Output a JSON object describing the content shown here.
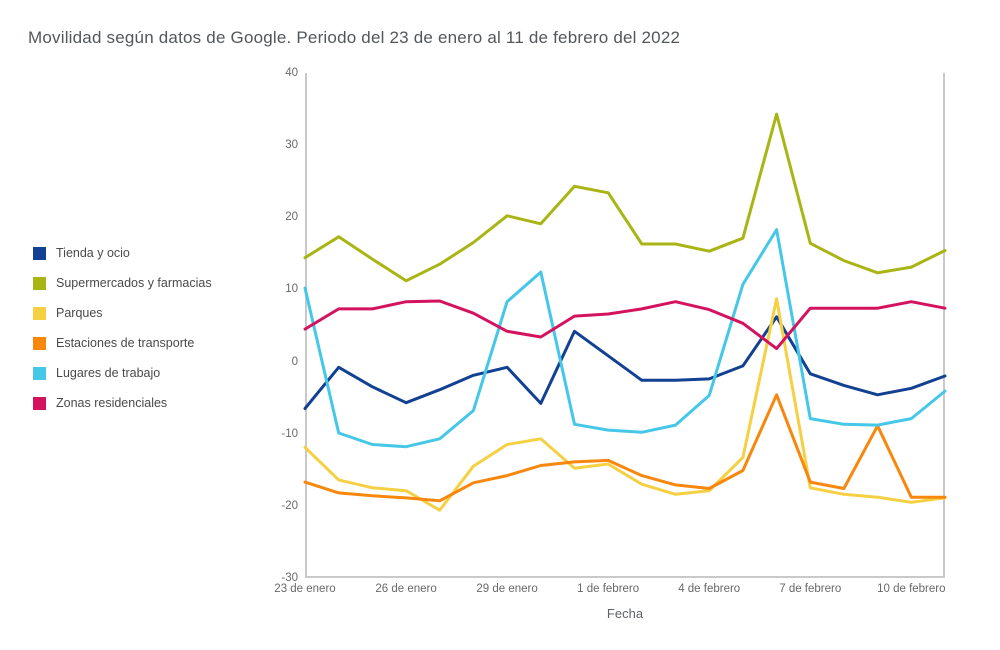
{
  "title": "Movilidad según datos de Google. Periodo del 23 de enero al 11 de febrero del 2022",
  "axes": {
    "y_ticks": [
      40,
      30,
      20,
      10,
      0,
      -10,
      -20,
      -30
    ],
    "x_tick_labels": [
      "23 de enero",
      "26 de enero",
      "29 de enero",
      "1 de febrero",
      "4 de febrero",
      "7 de febrero",
      "10 de febrero"
    ],
    "x_label": "Fecha",
    "axis_color": "#c9c9c9"
  },
  "legend": {
    "items": [
      {
        "label": "Tienda y ocio",
        "color": "#124092"
      },
      {
        "label": "Supermercados y farmacias",
        "color": "#a9b514"
      },
      {
        "label": "Parques",
        "color": "#f6d043"
      },
      {
        "label": "Estaciones de transporte",
        "color": "#f8870e"
      },
      {
        "label": "Lugares de trabajo",
        "color": "#45c7e8"
      },
      {
        "label": "Zonas residenciales",
        "color": "#d4135f"
      }
    ]
  },
  "chart_data": {
    "type": "line",
    "title": "Movilidad según datos de Google. Periodo del 23 de enero al 11 de febrero del 2022",
    "xlabel": "Fecha",
    "ylabel": "",
    "ylim": [
      -30,
      40
    ],
    "grid": false,
    "legend_position": "left",
    "x": [
      "23 de enero",
      "24 de enero",
      "25 de enero",
      "26 de enero",
      "27 de enero",
      "28 de enero",
      "29 de enero",
      "30 de enero",
      "31 de enero",
      "1 de febrero",
      "2 de febrero",
      "3 de febrero",
      "4 de febrero",
      "5 de febrero",
      "6 de febrero",
      "7 de febrero",
      "8 de febrero",
      "9 de febrero",
      "10 de febrero",
      "11 de febrero"
    ],
    "series": [
      {
        "name": "Tienda y ocio",
        "color": "#124092",
        "values": [
          -6.5,
          -0.8,
          -3.5,
          -5.7,
          -3.9,
          -1.9,
          -0.8,
          -5.8,
          4.2,
          0.8,
          -2.6,
          -2.6,
          -2.4,
          -0.6,
          6.2,
          -1.7,
          -3.3,
          -4.6,
          -3.7,
          -2.0
        ]
      },
      {
        "name": "Supermercados y farmacias",
        "color": "#a9b514",
        "values": [
          14.4,
          17.3,
          14.2,
          11.2,
          13.5,
          16.5,
          20.2,
          19.1,
          24.3,
          23.4,
          16.3,
          16.3,
          15.3,
          17.1,
          34.3,
          16.4,
          14.0,
          12.3,
          13.1,
          15.4
        ]
      },
      {
        "name": "Parques",
        "color": "#f6d043",
        "values": [
          -11.9,
          -16.4,
          -17.5,
          -17.9,
          -20.6,
          -14.5,
          -11.5,
          -10.7,
          -14.8,
          -14.2,
          -17.0,
          -18.4,
          -17.9,
          -13.3,
          8.7,
          -17.5,
          -18.4,
          -18.8,
          -19.5,
          -18.9
        ]
      },
      {
        "name": "Estaciones de transporte",
        "color": "#f8870e",
        "values": [
          -16.7,
          -18.2,
          -18.6,
          -18.9,
          -19.3,
          -16.8,
          -15.8,
          -14.4,
          -13.9,
          -13.7,
          -15.8,
          -17.1,
          -17.6,
          -15.1,
          -4.6,
          -16.7,
          -17.6,
          -8.9,
          -18.8,
          -18.8
        ]
      },
      {
        "name": "Lugares de trabajo",
        "color": "#45c7e8",
        "values": [
          10.2,
          -9.9,
          -11.5,
          -11.8,
          -10.7,
          -6.8,
          8.3,
          12.4,
          -8.7,
          -9.5,
          -9.8,
          -8.8,
          -4.7,
          10.7,
          18.3,
          -7.9,
          -8.7,
          -8.8,
          -7.9,
          -4.1
        ]
      },
      {
        "name": "Zonas residenciales",
        "color": "#d4135f",
        "values": [
          4.5,
          7.3,
          7.3,
          8.3,
          8.4,
          6.7,
          4.2,
          3.4,
          6.3,
          6.6,
          7.3,
          8.3,
          7.2,
          5.3,
          1.8,
          7.4,
          7.4,
          7.4,
          8.3,
          7.4
        ]
      }
    ]
  }
}
